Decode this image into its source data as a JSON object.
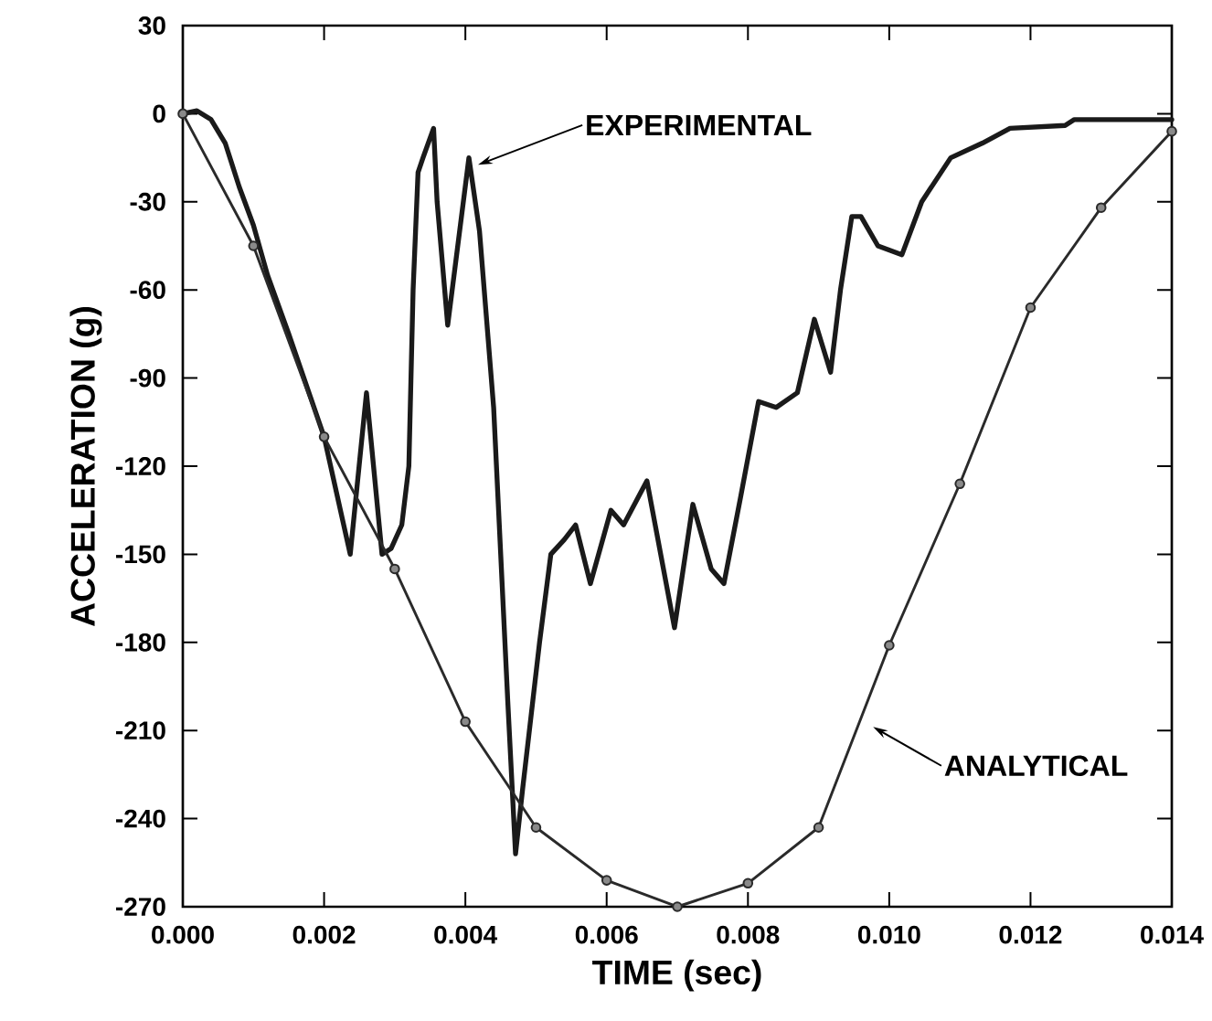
{
  "chart_data": {
    "type": "line",
    "xlabel": "TIME (sec)",
    "ylabel": "ACCELERATION (g)",
    "xlim": [
      0,
      0.014
    ],
    "ylim": [
      -270,
      30
    ],
    "xticks": [
      {
        "value": 0,
        "label": "0.000"
      },
      {
        "value": 0.002,
        "label": "0.002"
      },
      {
        "value": 0.004,
        "label": "0.004"
      },
      {
        "value": 0.006,
        "label": "0.006"
      },
      {
        "value": 0.008,
        "label": "0.008"
      },
      {
        "value": 0.01,
        "label": "0.010"
      },
      {
        "value": 0.012,
        "label": "0.012"
      },
      {
        "value": 0.014,
        "label": "0.014"
      }
    ],
    "yticks": [
      30,
      0,
      -30,
      -60,
      -90,
      -120,
      -150,
      -180,
      -210,
      -240,
      -270
    ],
    "grid": false,
    "series": [
      {
        "color": "#1a1a1a",
        "marker": "none",
        "line_style": "solid",
        "x": [
          0,
          0.0002,
          0.0004,
          0.0006,
          0.0008,
          0.001,
          0.0012,
          0.0015,
          0.002,
          0.00237,
          0.0026,
          0.00282,
          0.00295,
          0.0031,
          0.0032,
          0.00326,
          0.00333,
          0.0034,
          0.00355,
          0.0036,
          0.00375,
          0.00405,
          0.0042,
          0.0044,
          0.0045,
          0.0046,
          0.00471,
          0.00481,
          0.00505,
          0.00521,
          0.0054,
          0.00556,
          0.00577,
          0.00606,
          0.00624,
          0.00657,
          0.00696,
          0.00722,
          0.00748,
          0.00766,
          0.0079,
          0.00815,
          0.0084,
          0.0087,
          0.00894,
          0.00917,
          0.00931,
          0.00947,
          0.0096,
          0.00984,
          0.01018,
          0.01046,
          0.01087,
          0.01132,
          0.01171,
          0.01249,
          0.01262,
          0.014
        ],
        "values": [
          0,
          1,
          -2,
          -10,
          -25,
          -38,
          -55,
          -75,
          -110,
          -150,
          -95,
          -150,
          -148,
          -140,
          -120,
          -60,
          -20,
          -15,
          -5,
          -30,
          -72,
          -15,
          -40,
          -100,
          -150,
          -200,
          -252,
          -230,
          -180,
          -150,
          -145,
          -140,
          -160,
          -135,
          -140,
          -125,
          -175,
          -133,
          -155,
          -160,
          -130,
          -98,
          -100,
          -95,
          -70,
          -88,
          -60,
          -35,
          -35,
          -45,
          -48,
          -30,
          -15,
          -10,
          -5,
          -4,
          -2,
          -2
        ]
      },
      {
        "color": "#2a2a2a",
        "marker": "circle",
        "line_style": "solid",
        "x": [
          0,
          0.001,
          0.002,
          0.003,
          0.004,
          0.005,
          0.006,
          0.007,
          0.008,
          0.009,
          0.01,
          0.011,
          0.012,
          0.013,
          0.014
        ],
        "values": [
          0,
          -45,
          -110,
          -155,
          -207,
          -243,
          -261,
          -270,
          -262,
          -243,
          -181,
          -126,
          -66,
          -32,
          -6
        ]
      }
    ],
    "annotations": [
      "EXPERIMENTAL",
      "ANALYTICAL"
    ]
  }
}
